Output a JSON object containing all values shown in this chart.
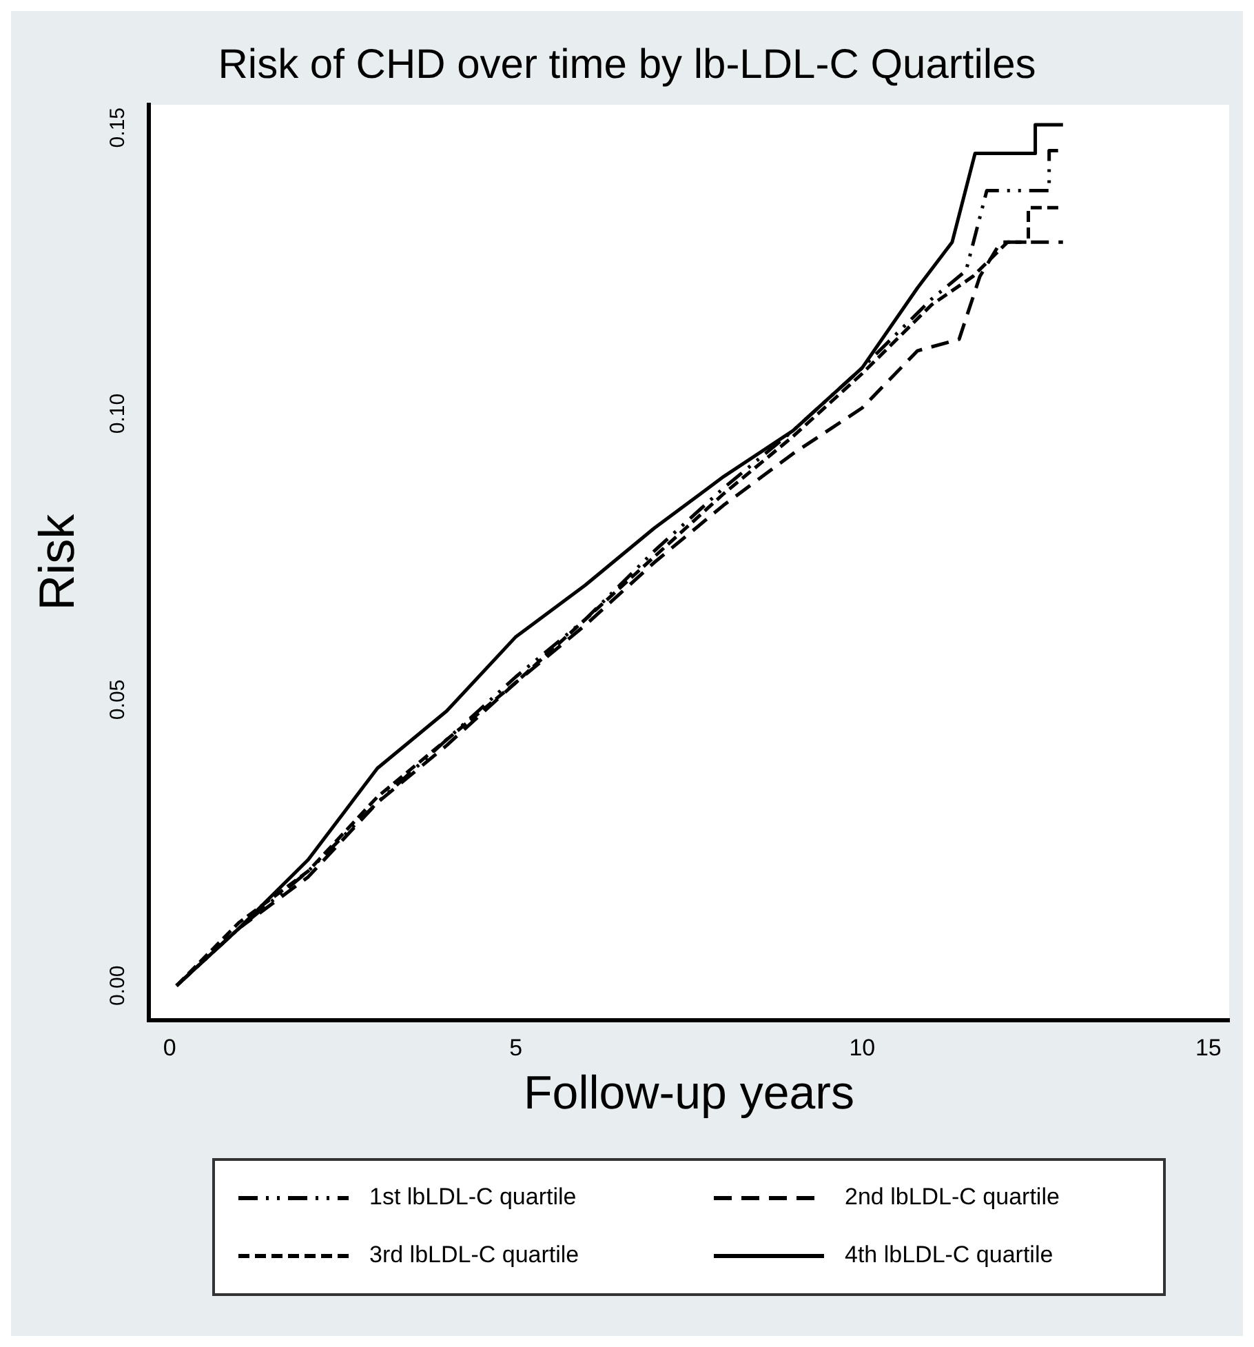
{
  "chart_data": {
    "type": "line",
    "title": "Risk of CHD over time by lb-LDL-C Quartiles",
    "xlabel": "Follow-up years",
    "ylabel": "Risk",
    "xlim": [
      -0.3,
      15.3
    ],
    "ylim": [
      -0.006,
      0.154
    ],
    "xticks": [
      0,
      5,
      10,
      15
    ],
    "yticks": [
      {
        "value": 0,
        "label": "0.00"
      },
      {
        "value": 0.05,
        "label": "0.05"
      },
      {
        "value": 0.1,
        "label": "0.10"
      },
      {
        "value": 0.15,
        "label": "0.15"
      }
    ],
    "grid": false,
    "legend": "bottom",
    "marker": "none",
    "series": [
      {
        "name": "1st lbLDL-C quartile",
        "color": "#000000",
        "line_style": "dashdot",
        "x": [
          0.1,
          1,
          2,
          3,
          4,
          5,
          6,
          7,
          8,
          9,
          10,
          11,
          11.5,
          11.8,
          12.7,
          12.7,
          12.9
        ],
        "values": [
          0,
          0.01,
          0.02,
          0.032,
          0.043,
          0.054,
          0.064,
          0.076,
          0.087,
          0.097,
          0.108,
          0.12,
          0.125,
          0.139,
          0.139,
          0.146,
          0.146
        ]
      },
      {
        "name": "2nd lbLDL-C quartile",
        "color": "#000000",
        "line_style": "longdash",
        "x": [
          0.1,
          1,
          2,
          3,
          4,
          5,
          6,
          7,
          8,
          9,
          10,
          10.8,
          11.4,
          11.7,
          12,
          12.9
        ],
        "values": [
          0,
          0.01,
          0.019,
          0.032,
          0.042,
          0.053,
          0.063,
          0.074,
          0.084,
          0.093,
          0.101,
          0.111,
          0.113,
          0.124,
          0.13,
          0.13
        ]
      },
      {
        "name": "3rd lbLDL-C quartile",
        "color": "#000000",
        "line_style": "dashed",
        "x": [
          0.1,
          1,
          2,
          3,
          4,
          5,
          6,
          7,
          8,
          9,
          10,
          11,
          11.6,
          12.1,
          12.4,
          12.4,
          12.9
        ],
        "values": [
          0,
          0.011,
          0.02,
          0.033,
          0.043,
          0.053,
          0.064,
          0.075,
          0.086,
          0.096,
          0.107,
          0.119,
          0.124,
          0.13,
          0.13,
          0.136,
          0.136
        ]
      },
      {
        "name": "4th lbLDL-C quartile",
        "color": "#000000",
        "line_style": "solid",
        "x": [
          0.1,
          1,
          2,
          3,
          4,
          5,
          6,
          7,
          8,
          9,
          10,
          10.8,
          11.3,
          11.63,
          12.5,
          12.5,
          12.9
        ],
        "values": [
          0,
          0.01,
          0.022,
          0.038,
          0.048,
          0.061,
          0.07,
          0.08,
          0.089,
          0.097,
          0.108,
          0.122,
          0.13,
          0.1455,
          0.1455,
          0.1505,
          0.1505
        ]
      }
    ]
  }
}
